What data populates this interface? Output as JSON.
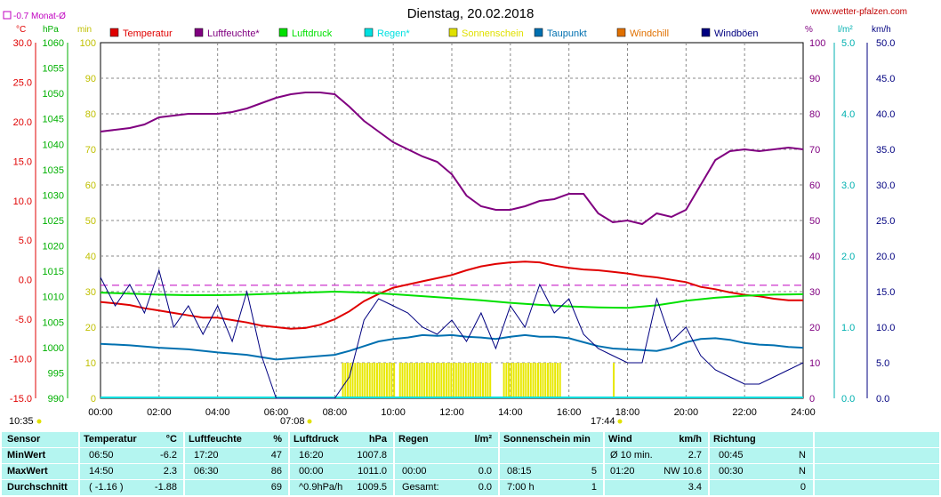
{
  "header": {
    "title": "Dienstag, 20.02.2018",
    "website": "www.wetter-pfalzen.com",
    "month_avg": "-0.7 Monat-Ø"
  },
  "units": {
    "temp": "°C",
    "pressure": "hPa",
    "min": "min",
    "pct": "%",
    "rain": "l/m²",
    "wind": "km/h"
  },
  "legend": [
    {
      "label": "Temperatur",
      "color": "#e00000"
    },
    {
      "label": "Luftfeuchte*",
      "color": "#800080"
    },
    {
      "label": "Luftdruck",
      "color": "#00e000"
    },
    {
      "label": "Regen*",
      "color": "#00e0e0"
    },
    {
      "label": "Sonnenschein",
      "color": "#e0e000"
    },
    {
      "label": "Taupunkt",
      "color": "#0070b0"
    },
    {
      "label": "Windchill",
      "color": "#e07000"
    },
    {
      "label": "Windböen",
      "color": "#000080"
    }
  ],
  "markers": {
    "start": "10:35",
    "sunrise": "07:08",
    "sunset": "17:44"
  },
  "chart_data": {
    "type": "line",
    "x_ticks": [
      "00:00",
      "02:00",
      "04:00",
      "06:00",
      "08:00",
      "10:00",
      "12:00",
      "14:00",
      "16:00",
      "18:00",
      "20:00",
      "22:00",
      "24:00"
    ],
    "axes": {
      "temp": {
        "label": "°C",
        "ylim": [
          -15,
          30
        ],
        "ticks": [
          "30.0",
          "25.0",
          "20.0",
          "15.0",
          "10.0",
          "5.0",
          "0.0",
          "-5.0",
          "-10.0",
          "-15.0"
        ]
      },
      "pressure": {
        "label": "hPa",
        "ylim": [
          990,
          1060
        ],
        "ticks": [
          "1060",
          "1055",
          "1050",
          "1045",
          "1040",
          "1035",
          "1030",
          "1025",
          "1020",
          "1015",
          "1010",
          "1005",
          "1000",
          "995",
          "990"
        ]
      },
      "sun_min": {
        "label": "min",
        "ylim": [
          0,
          100
        ],
        "ticks": [
          "100",
          "90",
          "80",
          "70",
          "60",
          "50",
          "40",
          "30",
          "20",
          "10",
          "0"
        ]
      },
      "humidity": {
        "label": "%",
        "ylim": [
          0,
          100
        ],
        "ticks": [
          "100",
          "90",
          "80",
          "70",
          "60",
          "50",
          "40",
          "30",
          "20",
          "10",
          "0"
        ]
      },
      "rain": {
        "label": "l/m²",
        "ylim": [
          0,
          5
        ],
        "ticks": [
          "5.0",
          "4.0",
          "3.0",
          "2.0",
          "1.0",
          "0.0"
        ]
      },
      "wind": {
        "label": "km/h",
        "ylim": [
          0,
          50
        ],
        "ticks": [
          "50.0",
          "45.0",
          "40.0",
          "35.0",
          "30.0",
          "25.0",
          "20.0",
          "15.0",
          "10.0",
          "5.0",
          "0.0"
        ]
      }
    },
    "month_avg_temp": -0.7,
    "series": [
      {
        "name": "Temperatur",
        "axis": "temp",
        "color": "#e00000",
        "x": [
          0,
          0.5,
          1,
          1.5,
          2,
          2.5,
          3,
          3.5,
          4,
          4.5,
          5,
          5.5,
          6,
          6.5,
          7,
          7.5,
          8,
          8.5,
          9,
          9.5,
          10,
          10.5,
          11,
          11.5,
          12,
          12.5,
          13,
          13.5,
          14,
          14.5,
          15,
          15.5,
          16,
          16.5,
          17,
          17.5,
          18,
          18.5,
          19,
          19.5,
          20,
          20.5,
          21,
          21.5,
          22,
          22.5,
          23,
          23.5,
          24
        ],
        "y": [
          -2.8,
          -3.0,
          -3.2,
          -3.6,
          -3.9,
          -4.2,
          -4.5,
          -4.8,
          -4.8,
          -5.1,
          -5.4,
          -5.8,
          -6.0,
          -6.2,
          -6.1,
          -5.7,
          -5.0,
          -4.0,
          -2.7,
          -1.8,
          -1.0,
          -0.6,
          -0.2,
          0.2,
          0.6,
          1.2,
          1.7,
          2.0,
          2.2,
          2.3,
          2.2,
          1.8,
          1.5,
          1.3,
          1.2,
          1.0,
          0.8,
          0.5,
          0.3,
          0.0,
          -0.3,
          -0.9,
          -1.2,
          -1.6,
          -1.9,
          -2.1,
          -2.4,
          -2.6,
          -2.6
        ]
      },
      {
        "name": "Luftfeuchte",
        "axis": "humidity",
        "color": "#800080",
        "x": [
          0,
          0.5,
          1,
          1.5,
          2,
          2.5,
          3,
          3.5,
          4,
          4.5,
          5,
          5.5,
          6,
          6.5,
          7,
          7.5,
          8,
          8.5,
          9,
          9.5,
          10,
          10.5,
          11,
          11.5,
          12,
          12.5,
          13,
          13.5,
          14,
          14.5,
          15,
          15.5,
          16,
          16.5,
          17,
          17.5,
          18,
          18.5,
          19,
          19.5,
          20,
          20.5,
          21,
          21.5,
          22,
          22.5,
          23,
          23.5,
          24
        ],
        "y": [
          75,
          75.5,
          76,
          77,
          79,
          79.5,
          80,
          80,
          80,
          80.5,
          81.5,
          83,
          84.5,
          85.5,
          86,
          86,
          85.5,
          82,
          78,
          75,
          72,
          70,
          68,
          66.5,
          63,
          57,
          54,
          53,
          53,
          54,
          55.5,
          56,
          57.5,
          57.5,
          52,
          49.5,
          50,
          49,
          52,
          51,
          53,
          60,
          67,
          69.5,
          70,
          69.5,
          70,
          70.5,
          70
        ]
      },
      {
        "name": "Luftdruck",
        "axis": "pressure",
        "color": "#00e000",
        "x": [
          0,
          1,
          2,
          3,
          4,
          5,
          6,
          7,
          8,
          9,
          10,
          11,
          12,
          13,
          14,
          15,
          16,
          17,
          18,
          19,
          20,
          21,
          22,
          23,
          24
        ],
        "y": [
          1010.8,
          1010.6,
          1010.4,
          1010.3,
          1010.3,
          1010.4,
          1010.6,
          1010.8,
          1011.0,
          1010.8,
          1010.5,
          1010.1,
          1009.7,
          1009.3,
          1008.8,
          1008.4,
          1008.1,
          1007.9,
          1007.8,
          1008.3,
          1009.2,
          1009.8,
          1010.2,
          1010.4,
          1010.5
        ]
      },
      {
        "name": "Taupunkt",
        "axis": "temp",
        "color": "#0070b0",
        "x": [
          0,
          1,
          2,
          3,
          4,
          5,
          6,
          7,
          8,
          8.5,
          9,
          9.5,
          10,
          10.5,
          11,
          11.5,
          12,
          12.5,
          13,
          13.5,
          14,
          14.5,
          15,
          15.5,
          16,
          16.5,
          17,
          17.5,
          18,
          18.5,
          19,
          19.5,
          20,
          20.5,
          21,
          21.5,
          22,
          22.5,
          23,
          23.5,
          24
        ],
        "y": [
          -8.1,
          -8.3,
          -8.6,
          -8.8,
          -9.2,
          -9.5,
          -10.1,
          -9.8,
          -9.5,
          -9.0,
          -8.4,
          -7.8,
          -7.5,
          -7.3,
          -7.0,
          -7.1,
          -7.0,
          -7.2,
          -7.3,
          -7.5,
          -7.2,
          -7.0,
          -7.2,
          -7.2,
          -7.4,
          -7.9,
          -8.4,
          -8.7,
          -8.8,
          -8.9,
          -9.0,
          -8.6,
          -7.9,
          -7.5,
          -7.4,
          -7.6,
          -8.0,
          -8.2,
          -8.3,
          -8.5,
          -8.6
        ]
      },
      {
        "name": "Windböen",
        "axis": "wind",
        "color": "#000080",
        "x": [
          0,
          0.5,
          1,
          1.5,
          2,
          2.5,
          3,
          3.5,
          4,
          4.5,
          5,
          5.5,
          6,
          6.5,
          7,
          7.5,
          8,
          8.5,
          9,
          9.5,
          10,
          10.5,
          11,
          11.5,
          12,
          12.5,
          13,
          13.5,
          14,
          14.5,
          15,
          15.5,
          16,
          16.5,
          17,
          17.5,
          18,
          18.5,
          19,
          19.5,
          20,
          20.5,
          21,
          21.5,
          22,
          22.5,
          23,
          23.5,
          24
        ],
        "y": [
          17,
          13,
          16,
          12,
          18,
          10,
          13,
          9,
          13,
          8,
          15,
          6,
          0,
          0,
          0,
          0,
          0,
          3,
          11,
          14,
          13,
          12,
          10,
          9,
          11,
          8,
          12,
          7,
          13,
          10,
          16,
          12,
          14,
          9,
          7,
          6,
          5,
          5,
          14,
          8,
          10,
          6,
          4,
          3,
          2,
          2,
          3,
          4,
          5
        ]
      }
    ],
    "sunshine_blocks": [
      [
        8.25,
        10.0
      ],
      [
        10.2,
        13.3
      ],
      [
        13.75,
        15.7
      ],
      [
        17.5,
        17.55
      ]
    ],
    "rain_total": 0.0
  },
  "table": {
    "headers": {
      "sensor": "Sensor",
      "temp": "Temperatur",
      "temp_u": "°C",
      "hum": "Luftfeuchte",
      "hum_u": "%",
      "press": "Luftdruck",
      "press_u": "hPa",
      "rain": "Regen",
      "rain_u": "l/m²",
      "sun": "Sonnenschein min",
      "wind": "Wind",
      "wind_u": "km/h",
      "dir": "Richtung"
    },
    "rows": [
      {
        "label": "MinWert",
        "temp_t": "06:50",
        "temp_v": "-6.2",
        "hum_t": "17:20",
        "hum_v": "47",
        "press_t": "16:20",
        "press_v": "1007.8",
        "rain_t": "",
        "rain_v": "",
        "sun_t": "",
        "sun_v": "",
        "wind_t": "Ø 10 min.",
        "wind_v": "2.7",
        "dir_t": "00:45",
        "dir_v": "N"
      },
      {
        "label": "MaxWert",
        "temp_t": "14:50",
        "temp_v": "2.3",
        "hum_t": "06:30",
        "hum_v": "86",
        "press_t": "00:00",
        "press_v": "1011.0",
        "rain_t": "00:00",
        "rain_v": "0.0",
        "sun_t": "08:15",
        "sun_v": "5",
        "wind_t": "01:20",
        "wind_v": "NW 10.6",
        "dir_t": "00:30",
        "dir_v": "N"
      },
      {
        "label": "Durchschnitt",
        "temp_t": "( -1.16 )",
        "temp_v": "-1.88",
        "hum_t": "",
        "hum_v": "69",
        "press_t": "^0.9hPa/h",
        "press_v": "1009.5",
        "rain_t": "Gesamt:",
        "rain_v": "0.0",
        "sun_t": "7:00 h",
        "sun_v": "1",
        "wind_t": "",
        "wind_v": "3.4",
        "dir_t": "",
        "dir_v": "0"
      }
    ]
  }
}
